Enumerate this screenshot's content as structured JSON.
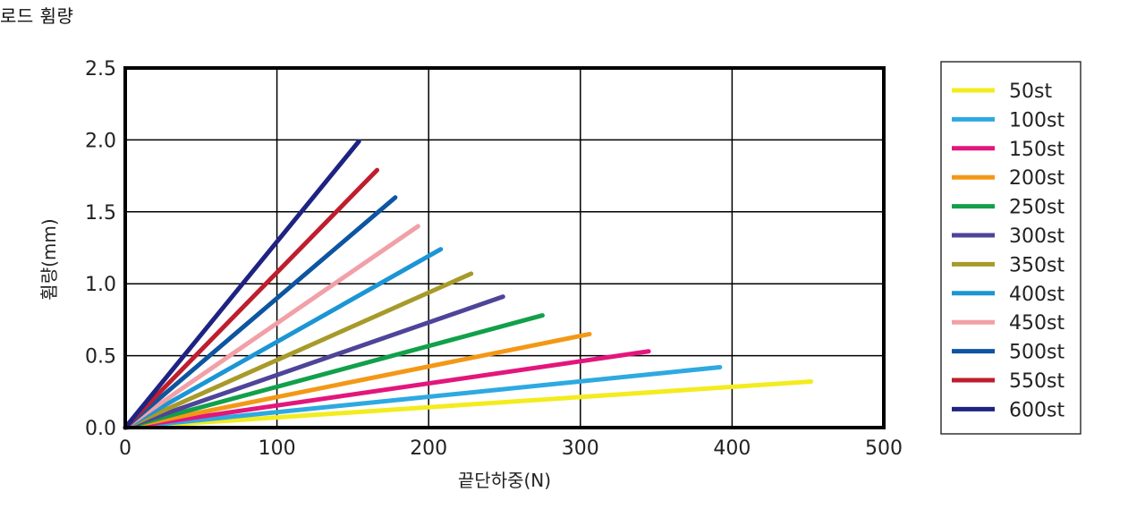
{
  "page": {
    "title": "로드 휨량"
  },
  "chart_data": {
    "type": "line",
    "title": "",
    "xlabel": "끝단하중(N)",
    "ylabel": "휨량(mm)",
    "xlim": [
      0,
      500
    ],
    "ylim": [
      0,
      2.5
    ],
    "xticks": [
      0,
      100,
      200,
      300,
      400,
      500
    ],
    "yticks": [
      "0.0",
      "0.5",
      "1.0",
      "1.5",
      "2.0",
      "2.5"
    ],
    "grid": true,
    "legend_position": "right",
    "series": [
      {
        "name": "50st",
        "color": "#f3ec1f",
        "x": [
          0,
          452
        ],
        "y": [
          0,
          0.32
        ]
      },
      {
        "name": "100st",
        "color": "#2ea9e1",
        "x": [
          0,
          392
        ],
        "y": [
          0,
          0.42
        ]
      },
      {
        "name": "150st",
        "color": "#e3167c",
        "x": [
          0,
          345
        ],
        "y": [
          0,
          0.53
        ]
      },
      {
        "name": "200st",
        "color": "#f39816",
        "x": [
          0,
          306
        ],
        "y": [
          0,
          0.65
        ]
      },
      {
        "name": "250st",
        "color": "#12a04a",
        "x": [
          0,
          275
        ],
        "y": [
          0,
          0.78
        ]
      },
      {
        "name": "300st",
        "color": "#4e4499",
        "x": [
          0,
          249
        ],
        "y": [
          0,
          0.91
        ]
      },
      {
        "name": "350st",
        "color": "#a79a2a",
        "x": [
          0,
          228
        ],
        "y": [
          0,
          1.07
        ]
      },
      {
        "name": "400st",
        "color": "#1c95d4",
        "x": [
          0,
          208
        ],
        "y": [
          0,
          1.24
        ]
      },
      {
        "name": "450st",
        "color": "#f2a0a7",
        "x": [
          0,
          193
        ],
        "y": [
          0,
          1.4
        ]
      },
      {
        "name": "500st",
        "color": "#0d55a0",
        "x": [
          0,
          178
        ],
        "y": [
          0,
          1.6
        ]
      },
      {
        "name": "550st",
        "color": "#be1e2d",
        "x": [
          0,
          166
        ],
        "y": [
          0,
          1.79
        ]
      },
      {
        "name": "600st",
        "color": "#1e2382",
        "x": [
          0,
          154
        ],
        "y": [
          0,
          1.99
        ]
      }
    ]
  }
}
